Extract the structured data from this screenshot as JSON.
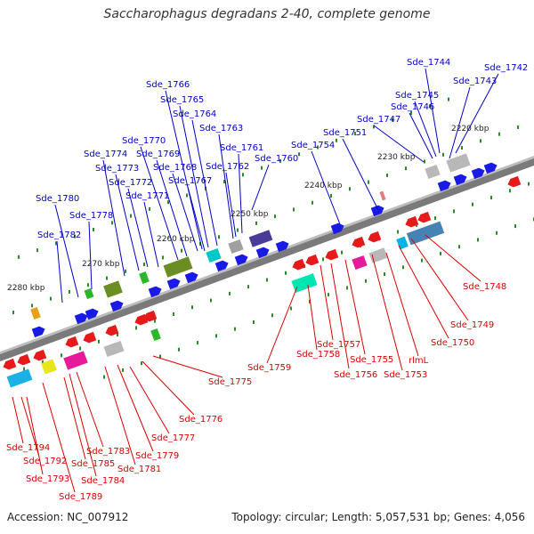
{
  "title": "Saccharophagus degradans 2-40, complete genome",
  "accession": "Accession: NC_007912",
  "summary": "Topology: circular; Length: 5,057,531 bp; Genes: 4,056",
  "colors": {
    "upper_label": "#0000cc",
    "lower_label": "#dd0000",
    "backbone": "#7a7a7a",
    "tick": "#2a8a2a",
    "forward_gene": "#1a1ae6",
    "reverse_gene": "#e61a1a"
  },
  "kbp_marks": [
    "2220 kbp",
    "2230 kbp",
    "2240 kbp",
    "2250 kbp",
    "2260 kbp",
    "2270 kbp",
    "2280 kbp"
  ],
  "upper_labels": [
    "Sde_1742",
    "Sde_1743",
    "Sde_1744",
    "Sde_1745",
    "Sde_1746",
    "Sde_1747",
    "Sde_1751",
    "Sde_1754",
    "Sde_1760",
    "Sde_1761",
    "Sde_1762",
    "Sde_1763",
    "Sde_1764",
    "Sde_1765",
    "Sde_1766",
    "Sde_1767",
    "Sde_1768",
    "Sde_1769",
    "Sde_1770",
    "Sde_1771",
    "Sde_1772",
    "Sde_1773",
    "Sde_1774",
    "Sde_1778",
    "Sde_1780",
    "Sde_1782"
  ],
  "lower_labels": [
    "Sde_1748",
    "Sde_1749",
    "Sde_1750",
    "rlmL",
    "Sde_1753",
    "Sde_1755",
    "Sde_1756",
    "Sde_1757",
    "Sde_1758",
    "Sde_1759",
    "Sde_1775",
    "Sde_1776",
    "Sde_1777",
    "Sde_1779",
    "Sde_1781",
    "Sde_1783",
    "Sde_1784",
    "Sde_1785",
    "Sde_1789",
    "Sde_1792",
    "Sde_1793",
    "Sde_1794"
  ]
}
